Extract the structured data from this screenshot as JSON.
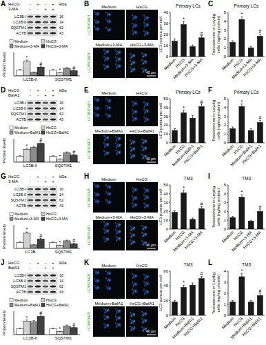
{
  "panels": [
    {
      "letter": "A",
      "blot": {
        "treatments": [
          {
            "name": "HsCG",
            "signs": [
              "-",
              "+",
              "-",
              "+"
            ]
          },
          {
            "name": "3-MA",
            "signs": [
              "-",
              "-",
              "+",
              "+"
            ]
          }
        ],
        "unit": "kDa",
        "bands": [
          {
            "name": "LC3B-I",
            "mw": 16
          },
          {
            "name": "LC3B-II",
            "mw": 14
          },
          {
            "name": "SQSTM1",
            "mw": 62
          },
          {
            "name": "ACTB",
            "mw": 43
          }
        ]
      }
    },
    {
      "letter": "B",
      "images": {
        "labels": [
          "Medium",
          "HsCG",
          "Medium+3-MA",
          "HsCG+3-MA"
        ],
        "stain": "LC3B/DAPI",
        "scale_bar": "40 μm"
      }
    },
    {
      "letter": "C"
    },
    {
      "letter": "D",
      "blot": {
        "treatments": [
          {
            "name": "HsCG",
            "signs": [
              "-",
              "+",
              "-",
              "+"
            ]
          },
          {
            "name": "BafA1",
            "signs": [
              "-",
              "-",
              "+",
              "+"
            ]
          }
        ],
        "unit": "kDa",
        "bands": [
          {
            "name": "LC3B-I",
            "mw": 16
          },
          {
            "name": "LC3B-II",
            "mw": 14
          },
          {
            "name": "SQSTM1",
            "mw": 62
          },
          {
            "name": "ACTB",
            "mw": 43
          }
        ]
      }
    },
    {
      "letter": "E",
      "images": {
        "labels": [
          "Medium",
          "HsCG",
          "Medium+BafA1",
          "HsCG+BafA1"
        ],
        "stain": "LC3B/DAPI",
        "scale_bar": "40 μm"
      }
    },
    {
      "letter": "F"
    },
    {
      "letter": "G",
      "blot": {
        "treatments": [
          {
            "name": "HsCG",
            "signs": [
              "-",
              "+",
              "-",
              "+"
            ]
          },
          {
            "name": "3-MA",
            "signs": [
              "-",
              "-",
              "+",
              "+"
            ]
          }
        ],
        "unit": "kDa",
        "bands": [
          {
            "name": "LC3B-I",
            "mw": 16
          },
          {
            "name": "LC3B-II",
            "mw": 14
          },
          {
            "name": "SQSTM1",
            "mw": 62
          },
          {
            "name": "ACTB",
            "mw": 43
          }
        ]
      }
    },
    {
      "letter": "H",
      "images": {
        "labels": [
          "Medium",
          "HsCG",
          "Medium+3-MA",
          "HsCG+3-MA"
        ],
        "stain": "LC3B/DAPI",
        "scale_bar": "40 μm"
      }
    },
    {
      "letter": "I"
    },
    {
      "letter": "J",
      "blot": {
        "treatments": [
          {
            "name": "HsCG",
            "signs": [
              "-",
              "+",
              "-",
              "+"
            ]
          },
          {
            "name": "BafA1",
            "signs": [
              "-",
              "-",
              "+",
              "+"
            ]
          }
        ],
        "unit": "kDa",
        "bands": [
          {
            "name": "LC3B-I",
            "mw": 16
          },
          {
            "name": "LC3B-II",
            "mw": 14
          },
          {
            "name": "SQSTM1",
            "mw": 62
          },
          {
            "name": "ACTB",
            "mw": 43
          }
        ]
      }
    },
    {
      "letter": "K",
      "images": {
        "labels": [
          "Medium",
          "HsCG",
          "Medium+BafA1",
          "HsCG+BafA1"
        ],
        "stain": "LC3B/DAPI",
        "scale_bar": "40 μm"
      }
    },
    {
      "letter": "L"
    }
  ],
  "chart_data": [
    {
      "type": "bar",
      "y_label": "Protein levels",
      "categories": [
        "LC3B-II",
        "SQSTM1"
      ],
      "series": [
        {
          "name": "Medium",
          "color": "#ffffff",
          "values": [
            1,
            1
          ],
          "errors": [
            0.1,
            0.1
          ]
        },
        {
          "name": "HsCG",
          "color": "#d0d0d0",
          "values": [
            2.5,
            0.5
          ],
          "errors": [
            0.2,
            0.06
          ]
        },
        {
          "name": "Medium+3-MA",
          "color": "#8c8c8c",
          "values": [
            0.6,
            1.3
          ],
          "errors": [
            0.08,
            0.12
          ]
        },
        {
          "name": "HsCG+3-MA",
          "color": "#404040",
          "values": [
            1.5,
            0.9
          ],
          "errors": [
            0.15,
            0.1
          ]
        }
      ],
      "ylim": [
        0,
        4
      ],
      "tick_labels": "x",
      "legend": "top",
      "annotations": [
        {
          "series": 1,
          "index": 0,
          "text": "*"
        },
        {
          "series": 1,
          "index": 1,
          "text": "*"
        },
        {
          "series": 3,
          "index": 0,
          "text": "#"
        },
        {
          "series": 3,
          "index": 1,
          "text": "#"
        }
      ]
    },
    {
      "type": "bar",
      "title": "Primary LCs",
      "y_label": "LC3 puncta per cell",
      "categories": [
        "Medium",
        "HsCG",
        "Medium+3-MA",
        "HsCG+3-MA"
      ],
      "values": [
        14,
        29,
        9,
        17
      ],
      "errors": [
        2,
        3,
        1.5,
        2
      ],
      "color": "#1a1a1a",
      "ylim": [
        0,
        40
      ],
      "yticks": [
        0,
        10,
        20,
        30,
        40
      ],
      "annotations": [
        {
          "index": 1,
          "text": "*"
        },
        {
          "index": 3,
          "text": "#"
        }
      ]
    },
    {
      "type": "bar",
      "title": "Primary LCs",
      "y_label": [
        "Testosterone in Leydig",
        "cells (ng/mg protein)"
      ],
      "categories": [
        "Medium",
        "HsCG",
        "Medium+3-MA",
        "HsCG+3-MA"
      ],
      "values": [
        1.6,
        4.2,
        1.0,
        2.3
      ],
      "errors": [
        0.2,
        0.3,
        0.15,
        0.25
      ],
      "color": "#1a1a1a",
      "ylim": [
        0,
        5
      ],
      "yticks": [
        0,
        1,
        2,
        3,
        4,
        5
      ],
      "annotations": [
        {
          "index": 1,
          "text": "*"
        },
        {
          "index": 3,
          "text": "#"
        }
      ]
    },
    {
      "type": "bar",
      "y_label": "Protein levels",
      "categories": [
        "LC3B-II",
        "SQSTM1"
      ],
      "series": [
        {
          "name": "Medium",
          "color": "#ffffff",
          "values": [
            1,
            1
          ],
          "errors": [
            0.1,
            0.1
          ]
        },
        {
          "name": "HsCG",
          "color": "#d0d0d0",
          "values": [
            2.2,
            0.5
          ],
          "errors": [
            0.2,
            0.06
          ]
        },
        {
          "name": "Medium+BafA1",
          "color": "#8c8c8c",
          "values": [
            2.5,
            1.6
          ],
          "errors": [
            0.2,
            0.15
          ]
        },
        {
          "name": "HsCG+BafA1",
          "color": "#404040",
          "values": [
            3.2,
            1.2
          ],
          "errors": [
            0.25,
            0.12
          ]
        }
      ],
      "ylim": [
        0,
        4
      ],
      "tick_labels": "x",
      "legend": "top",
      "annotations": [
        {
          "series": 1,
          "index": 0,
          "text": "*"
        },
        {
          "series": 1,
          "index": 1,
          "text": "*"
        },
        {
          "series": 3,
          "index": 0,
          "text": "#"
        },
        {
          "series": 3,
          "index": 1,
          "text": "#"
        }
      ]
    },
    {
      "type": "bar",
      "title": "Primary LCs",
      "y_label": "LC3 puncta per cell",
      "categories": [
        "Medium",
        "HsCG",
        "Medium+BafA1",
        "HsCG+BafA1"
      ],
      "values": [
        14,
        34,
        28,
        41
      ],
      "errors": [
        2,
        3,
        3,
        3
      ],
      "color": "#1a1a1a",
      "ylim": [
        0,
        50
      ],
      "yticks": [
        0,
        10,
        20,
        30,
        40,
        50
      ],
      "annotations": [
        {
          "index": 1,
          "text": "*"
        },
        {
          "index": 3,
          "text": "#"
        }
      ]
    },
    {
      "type": "bar",
      "title": "Primary LCs",
      "y_label": [
        "Testosterone in Leydig",
        "cells (ng/mg protein)"
      ],
      "categories": [
        "Medium",
        "HsCG",
        "Medium+BafA1",
        "HsCG+BafA1"
      ],
      "values": [
        1.6,
        4.1,
        1.4,
        2.3
      ],
      "errors": [
        0.2,
        0.3,
        0.2,
        0.25
      ],
      "color": "#1a1a1a",
      "ylim": [
        0,
        5
      ],
      "yticks": [
        0,
        1,
        2,
        3,
        4,
        5
      ],
      "annotations": [
        {
          "index": 1,
          "text": "*"
        },
        {
          "index": 3,
          "text": "#"
        }
      ]
    },
    {
      "type": "bar",
      "y_label": "Protein levels",
      "categories": [
        "LC3B",
        "SQSTM1"
      ],
      "series": [
        {
          "name": "Medium",
          "color": "#ffffff",
          "values": [
            1,
            1
          ],
          "errors": [
            0.1,
            0.1
          ]
        },
        {
          "name": "HsCG",
          "color": "#d0d0d0",
          "values": [
            2.6,
            0.5
          ],
          "errors": [
            0.2,
            0.06
          ]
        },
        {
          "name": "Medium+3-MA",
          "color": "#8c8c8c",
          "values": [
            0.6,
            1.3
          ],
          "errors": [
            0.08,
            0.12
          ]
        },
        {
          "name": "HsCG+3-MA",
          "color": "#404040",
          "values": [
            1.6,
            0.8
          ],
          "errors": [
            0.15,
            0.1
          ]
        }
      ],
      "ylim": [
        0,
        4
      ],
      "tick_labels": "x",
      "legend": "top",
      "annotations": [
        {
          "series": 1,
          "index": 0,
          "text": "*"
        },
        {
          "series": 1,
          "index": 1,
          "text": "*"
        },
        {
          "series": 3,
          "index": 0,
          "text": "#"
        },
        {
          "series": 3,
          "index": 1,
          "text": "#"
        }
      ]
    },
    {
      "type": "bar",
      "title": "TM3",
      "y_label": "LC3 puncta per cell",
      "categories": [
        "Medium",
        "HsCG",
        "Medium+3-MA",
        "HsCG+3-MA"
      ],
      "values": [
        19,
        41,
        11,
        23
      ],
      "errors": [
        2,
        3,
        1.5,
        2.5
      ],
      "color": "#1a1a1a",
      "ylim": [
        0,
        50
      ],
      "yticks": [
        0,
        10,
        20,
        30,
        40,
        50
      ],
      "annotations": [
        {
          "index": 1,
          "text": "*"
        },
        {
          "index": 3,
          "text": "#"
        }
      ]
    },
    {
      "type": "bar",
      "title": "TM3",
      "y_label": [
        "Testosterone in Leydig",
        "cells (ng/mg protein)"
      ],
      "categories": [
        "Medium",
        "HsCG",
        "Medium+3-MA",
        "HsCG+3-MA"
      ],
      "values": [
        1.3,
        3.6,
        0.9,
        2.0
      ],
      "errors": [
        0.15,
        0.3,
        0.1,
        0.2
      ],
      "color": "#1a1a1a",
      "ylim": [
        0,
        5
      ],
      "yticks": [
        0,
        1,
        2,
        3,
        4,
        5
      ],
      "annotations": [
        {
          "index": 1,
          "text": "*"
        },
        {
          "index": 3,
          "text": "#"
        }
      ]
    },
    {
      "type": "bar",
      "y_label": "Protein levels",
      "categories": [
        "LC3B-II",
        "SQSTM1"
      ],
      "series": [
        {
          "name": "Medium",
          "color": "#ffffff",
          "values": [
            1,
            1
          ],
          "errors": [
            0.1,
            0.1
          ]
        },
        {
          "name": "HsCG",
          "color": "#d0d0d0",
          "values": [
            2.3,
            0.5
          ],
          "errors": [
            0.2,
            0.06
          ]
        },
        {
          "name": "Medium+BafA1",
          "color": "#8c8c8c",
          "values": [
            2.2,
            1.5
          ],
          "errors": [
            0.2,
            0.15
          ]
        },
        {
          "name": "HsCG+BafA1",
          "color": "#404040",
          "values": [
            3.1,
            1.2
          ],
          "errors": [
            0.25,
            0.12
          ]
        }
      ],
      "ylim": [
        0,
        4
      ],
      "tick_labels": "x",
      "legend": "top",
      "annotations": [
        {
          "series": 1,
          "index": 0,
          "text": "*"
        },
        {
          "series": 1,
          "index": 1,
          "text": "*"
        },
        {
          "series": 3,
          "index": 0,
          "text": "#"
        },
        {
          "series": 3,
          "index": 1,
          "text": "#"
        }
      ]
    },
    {
      "type": "bar",
      "title": "TM3",
      "y_label": "LC3 puncta per cell",
      "categories": [
        "Medium",
        "HsCG",
        "Medium+BafA1",
        "HsCG+BafA1"
      ],
      "values": [
        18,
        38,
        41,
        50
      ],
      "errors": [
        2,
        3,
        3,
        3
      ],
      "color": "#1a1a1a",
      "ylim": [
        0,
        60
      ],
      "yticks": [
        0,
        20,
        40,
        60
      ],
      "annotations": [
        {
          "index": 1,
          "text": "*"
        },
        {
          "index": 3,
          "text": "#"
        }
      ]
    },
    {
      "type": "bar",
      "title": "TM3",
      "y_label": [
        "Testosterone in Leydig",
        "cells (ng/mg protein)"
      ],
      "categories": [
        "Medium",
        "HsCG",
        "Medium+BafA1",
        "HsCG+BafA1"
      ],
      "values": [
        1.2,
        3.5,
        1.2,
        1.8
      ],
      "errors": [
        0.15,
        0.3,
        0.15,
        0.2
      ],
      "color": "#1a1a1a",
      "ylim": [
        0,
        4
      ],
      "yticks": [
        0,
        1,
        2,
        3,
        4
      ],
      "annotations": [
        {
          "index": 1,
          "text": "*"
        },
        {
          "index": 3,
          "text": "#"
        }
      ]
    }
  ]
}
